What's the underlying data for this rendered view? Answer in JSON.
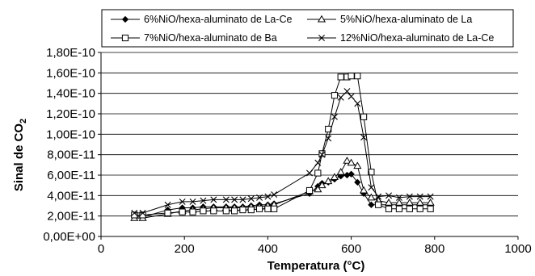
{
  "chart_data": {
    "type": "line",
    "title": "",
    "xlabel": "Temperatura (°C)",
    "ylabel_main": "Sinal de CO",
    "ylabel_sub": "2",
    "xlim": [
      0,
      1000
    ],
    "ylim": [
      0,
      1.8e-10
    ],
    "x_ticks": [
      0,
      200,
      400,
      600,
      800,
      1000
    ],
    "y_ticks": [
      0,
      2e-11,
      4e-11,
      6e-11,
      8e-11,
      1e-10,
      1.2e-10,
      1.4e-10,
      1.6e-10,
      1.8e-10
    ],
    "x_tick_labels": [
      "0",
      "200",
      "400",
      "600",
      "800",
      "1000"
    ],
    "y_tick_labels": [
      "0,00E+00",
      "2,00E-11",
      "4,00E-11",
      "6,00E-11",
      "8,00E-11",
      "1,00E-10",
      "1,20E-10",
      "1,40E-10",
      "1,60E-10",
      "1,80E-10"
    ],
    "grid": "horizontal",
    "legend_position": "top",
    "series": [
      {
        "name": "6%NiO/hexa-aluminato de La-Ce",
        "marker": "filled-diamond",
        "x": [
          80,
          100,
          160,
          195,
          220,
          245,
          270,
          300,
          320,
          340,
          360,
          380,
          400,
          415,
          500,
          520,
          530,
          545,
          560,
          575,
          590,
          600,
          615,
          630,
          648,
          665,
          690,
          715,
          740,
          765,
          790
        ],
        "y": [
          1.9e-11,
          1.9e-11,
          2.6e-11,
          2.8e-11,
          2.8e-11,
          2.9e-11,
          2.9e-11,
          2.9e-11,
          2.9e-11,
          2.9e-11,
          3e-11,
          3.1e-11,
          3.1e-11,
          3.2e-11,
          4.2e-11,
          4.9e-11,
          5.2e-11,
          5.3e-11,
          5.6e-11,
          5.9e-11,
          6e-11,
          6.1e-11,
          5.3e-11,
          4.2e-11,
          3.1e-11,
          3.1e-11,
          3.1e-11,
          3.1e-11,
          3.1e-11,
          3.1e-11,
          3.1e-11
        ]
      },
      {
        "name": "5%NiO/hexa-aluminato de La",
        "marker": "open-triangle",
        "x": [
          80,
          100,
          160,
          195,
          220,
          245,
          270,
          300,
          320,
          340,
          360,
          380,
          400,
          415,
          500,
          520,
          530,
          545,
          560,
          575,
          590,
          600,
          615,
          630,
          648,
          665,
          690,
          715,
          740,
          765,
          790
        ],
        "y": [
          1.8e-11,
          1.8e-11,
          2.2e-11,
          2.5e-11,
          2.6e-11,
          2.7e-11,
          2.8e-11,
          2.8e-11,
          2.8e-11,
          2.8e-11,
          2.9e-11,
          2.9e-11,
          3e-11,
          3.1e-11,
          4.4e-11,
          4.6e-11,
          5e-11,
          5.4e-11,
          5.8e-11,
          6.3e-11,
          7.4e-11,
          7.2e-11,
          6.9e-11,
          4.5e-11,
          3.8e-11,
          3.5e-11,
          3.3e-11,
          3.3e-11,
          3.3e-11,
          3.3e-11,
          3.3e-11
        ]
      },
      {
        "name": "7%NiO/hexa-aluminato de Ba",
        "marker": "open-square",
        "x": [
          80,
          100,
          160,
          195,
          220,
          245,
          270,
          300,
          320,
          340,
          360,
          380,
          400,
          415,
          500,
          520,
          530,
          545,
          560,
          575,
          590,
          600,
          615,
          630,
          648,
          665,
          690,
          715,
          740,
          765,
          790
        ],
        "y": [
          2.1e-11,
          2.1e-11,
          2.3e-11,
          2.4e-11,
          2.4e-11,
          2.5e-11,
          2.5e-11,
          2.5e-11,
          2.5e-11,
          2.6e-11,
          2.6e-11,
          2.7e-11,
          2.7e-11,
          2.7e-11,
          4.5e-11,
          6.2e-11,
          8.1e-11,
          1.05e-10,
          1.38e-10,
          1.56e-10,
          1.56e-10,
          1.57e-10,
          1.57e-10,
          1.17e-10,
          6.3e-11,
          3.1e-11,
          2.7e-11,
          2.7e-11,
          2.7e-11,
          2.7e-11,
          2.7e-11
        ]
      },
      {
        "name": "12%NiO/hexa-aluminato de La-Ce",
        "marker": "cross",
        "x": [
          80,
          100,
          160,
          195,
          220,
          245,
          270,
          300,
          320,
          340,
          360,
          380,
          400,
          415,
          500,
          520,
          530,
          545,
          560,
          575,
          590,
          600,
          615,
          630,
          648,
          665,
          690,
          715,
          740,
          765,
          790
        ],
        "y": [
          2.3e-11,
          2.3e-11,
          3.1e-11,
          3.4e-11,
          3.4e-11,
          3.5e-11,
          3.6e-11,
          3.6e-11,
          3.6e-11,
          3.6e-11,
          3.7e-11,
          3.8e-11,
          3.9e-11,
          4.1e-11,
          6.2e-11,
          7.2e-11,
          8e-11,
          9.6e-11,
          1.17e-10,
          1.36e-10,
          1.42e-10,
          1.37e-10,
          1.3e-10,
          9.7e-11,
          4.8e-11,
          3.9e-11,
          4e-11,
          3.8e-11,
          3.9e-11,
          3.9e-11,
          3.9e-11
        ]
      }
    ]
  }
}
